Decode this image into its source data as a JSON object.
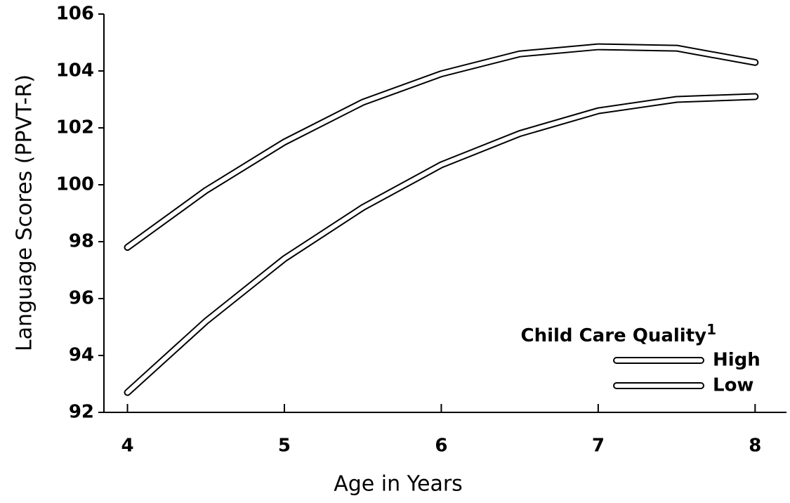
{
  "chart_data": {
    "type": "line",
    "x_label": "Age in Years",
    "y_label": "Language Scores (PPVT-R)",
    "x": [
      4,
      4.5,
      5,
      5.5,
      6,
      6.5,
      7,
      7.5,
      8
    ],
    "series": [
      {
        "name": "High",
        "color": "#000000",
        "values": [
          97.8,
          99.8,
          101.5,
          102.9,
          103.9,
          104.6,
          104.85,
          104.8,
          104.3
        ]
      },
      {
        "name": "Low",
        "color": "#000000",
        "values": [
          92.7,
          95.2,
          97.4,
          99.2,
          100.7,
          101.8,
          102.6,
          103.0,
          103.1
        ]
      }
    ],
    "legend_title": "Child Care Quality",
    "legend_title_note": "1",
    "legend_position": "lower right",
    "xlim": [
      3.85,
      8.2
    ],
    "xticks": [
      4,
      5,
      6,
      7,
      8
    ],
    "ylim": [
      92,
      106
    ],
    "yticks": [
      92,
      94,
      96,
      98,
      100,
      102,
      104,
      106
    ],
    "grid": false
  }
}
